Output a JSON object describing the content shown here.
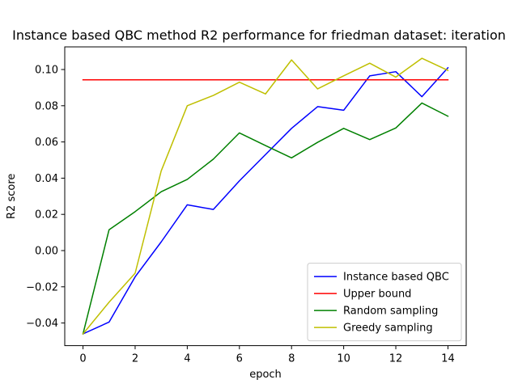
{
  "chart_data": {
    "type": "line",
    "title": "Instance based QBC method R2 performance for friedman dataset: iteration",
    "xlabel": "epoch",
    "ylabel": "R2 score",
    "x": [
      0,
      1,
      2,
      3,
      4,
      5,
      6,
      7,
      8,
      9,
      10,
      11,
      12,
      13,
      14
    ],
    "xlim": [
      -0.7,
      14.7
    ],
    "ylim": [
      -0.0525,
      0.1125
    ],
    "xticks": [
      0,
      2,
      4,
      6,
      8,
      10,
      12,
      14
    ],
    "xtick_labels": [
      "0",
      "2",
      "4",
      "6",
      "8",
      "10",
      "12",
      "14"
    ],
    "yticks": [
      -0.04,
      -0.02,
      0.0,
      0.02,
      0.04,
      0.06,
      0.08,
      0.1
    ],
    "ytick_labels": [
      "−0.04",
      "−0.02",
      "0.00",
      "0.02",
      "0.04",
      "0.06",
      "0.08",
      "0.10"
    ],
    "grid": false,
    "legend_position": "lower-right",
    "series": [
      {
        "name": "Instance based QBC",
        "color": "#0000ff",
        "values": [
          -0.046,
          -0.0395,
          -0.0145,
          0.0048,
          0.0253,
          0.0227,
          0.0385,
          0.053,
          0.0675,
          0.0795,
          0.0775,
          0.0965,
          0.0988,
          0.085,
          0.101
        ]
      },
      {
        "name": "Upper bound",
        "color": "#ff0000",
        "values": [
          0.0943,
          0.0943,
          0.0943,
          0.0943,
          0.0943,
          0.0943,
          0.0943,
          0.0943,
          0.0943,
          0.0943,
          0.0943,
          0.0943,
          0.0943,
          0.0943,
          0.0943
        ]
      },
      {
        "name": "Random sampling",
        "color": "#008000",
        "values": [
          -0.046,
          0.0115,
          0.0215,
          0.0325,
          0.0393,
          0.0505,
          0.065,
          0.058,
          0.0512,
          0.0598,
          0.0675,
          0.0613,
          0.0677,
          0.0815,
          0.0742
        ]
      },
      {
        "name": "Greedy sampling",
        "color": "#bfbf00",
        "values": [
          -0.046,
          -0.0285,
          -0.0125,
          0.044,
          0.08,
          0.0857,
          0.093,
          0.0865,
          0.1053,
          0.0893,
          0.0965,
          0.1035,
          0.0958,
          0.1062,
          0.0995
        ]
      }
    ]
  }
}
